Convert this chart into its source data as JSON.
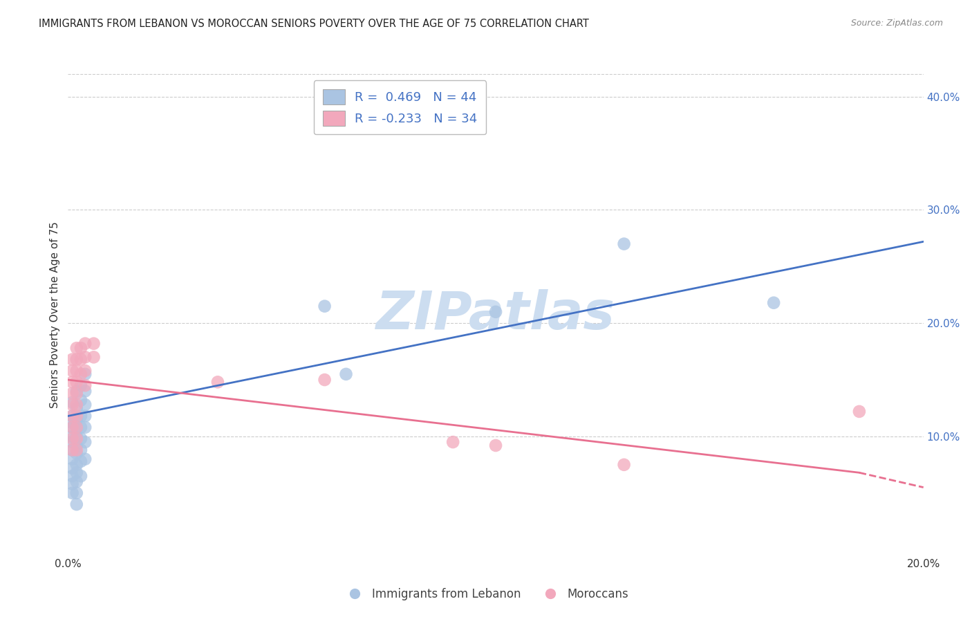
{
  "title": "IMMIGRANTS FROM LEBANON VS MOROCCAN SENIORS POVERTY OVER THE AGE OF 75 CORRELATION CHART",
  "source": "Source: ZipAtlas.com",
  "ylabel": "Seniors Poverty Over the Age of 75",
  "xlim": [
    0.0,
    0.2
  ],
  "ylim": [
    -0.005,
    0.42
  ],
  "yticks": [
    0.1,
    0.2,
    0.3,
    0.4
  ],
  "ytick_labels": [
    "10.0%",
    "20.0%",
    "30.0%",
    "40.0%"
  ],
  "xticks": [
    0.0,
    0.04,
    0.08,
    0.12,
    0.16,
    0.2
  ],
  "xtick_labels": [
    "0.0%",
    "",
    "",
    "",
    "",
    "20.0%"
  ],
  "blue_color": "#aac4e2",
  "pink_color": "#f2a8bc",
  "blue_line_color": "#4472c4",
  "pink_line_color": "#e87090",
  "blue_scatter": [
    [
      0.001,
      0.13
    ],
    [
      0.001,
      0.118
    ],
    [
      0.001,
      0.112
    ],
    [
      0.001,
      0.108
    ],
    [
      0.001,
      0.1
    ],
    [
      0.001,
      0.095
    ],
    [
      0.001,
      0.088
    ],
    [
      0.001,
      0.08
    ],
    [
      0.001,
      0.072
    ],
    [
      0.001,
      0.065
    ],
    [
      0.001,
      0.058
    ],
    [
      0.001,
      0.05
    ],
    [
      0.002,
      0.14
    ],
    [
      0.002,
      0.125
    ],
    [
      0.002,
      0.115
    ],
    [
      0.002,
      0.108
    ],
    [
      0.002,
      0.1
    ],
    [
      0.002,
      0.092
    ],
    [
      0.002,
      0.085
    ],
    [
      0.002,
      0.075
    ],
    [
      0.002,
      0.068
    ],
    [
      0.002,
      0.06
    ],
    [
      0.002,
      0.05
    ],
    [
      0.002,
      0.04
    ],
    [
      0.003,
      0.145
    ],
    [
      0.003,
      0.132
    ],
    [
      0.003,
      0.118
    ],
    [
      0.003,
      0.108
    ],
    [
      0.003,
      0.098
    ],
    [
      0.003,
      0.088
    ],
    [
      0.003,
      0.078
    ],
    [
      0.003,
      0.065
    ],
    [
      0.004,
      0.155
    ],
    [
      0.004,
      0.14
    ],
    [
      0.004,
      0.128
    ],
    [
      0.004,
      0.118
    ],
    [
      0.004,
      0.108
    ],
    [
      0.004,
      0.095
    ],
    [
      0.004,
      0.08
    ],
    [
      0.06,
      0.215
    ],
    [
      0.1,
      0.21
    ],
    [
      0.13,
      0.27
    ],
    [
      0.165,
      0.218
    ],
    [
      0.065,
      0.155
    ]
  ],
  "pink_scatter": [
    [
      0.001,
      0.168
    ],
    [
      0.001,
      0.158
    ],
    [
      0.001,
      0.148
    ],
    [
      0.001,
      0.138
    ],
    [
      0.001,
      0.128
    ],
    [
      0.001,
      0.118
    ],
    [
      0.001,
      0.108
    ],
    [
      0.001,
      0.098
    ],
    [
      0.001,
      0.088
    ],
    [
      0.002,
      0.178
    ],
    [
      0.002,
      0.168
    ],
    [
      0.002,
      0.158
    ],
    [
      0.002,
      0.148
    ],
    [
      0.002,
      0.138
    ],
    [
      0.002,
      0.128
    ],
    [
      0.002,
      0.118
    ],
    [
      0.002,
      0.108
    ],
    [
      0.002,
      0.098
    ],
    [
      0.002,
      0.088
    ],
    [
      0.003,
      0.178
    ],
    [
      0.003,
      0.168
    ],
    [
      0.003,
      0.155
    ],
    [
      0.004,
      0.182
    ],
    [
      0.004,
      0.17
    ],
    [
      0.004,
      0.158
    ],
    [
      0.004,
      0.145
    ],
    [
      0.006,
      0.182
    ],
    [
      0.006,
      0.17
    ],
    [
      0.035,
      0.148
    ],
    [
      0.06,
      0.15
    ],
    [
      0.09,
      0.095
    ],
    [
      0.1,
      0.092
    ],
    [
      0.13,
      0.075
    ],
    [
      0.185,
      0.122
    ]
  ],
  "blue_trendline_solid": [
    [
      0.0,
      0.118
    ],
    [
      0.2,
      0.272
    ]
  ],
  "pink_trendline_solid": [
    [
      0.0,
      0.15
    ],
    [
      0.185,
      0.068
    ]
  ],
  "pink_trendline_dashed": [
    [
      0.185,
      0.068
    ],
    [
      0.2,
      0.055
    ]
  ],
  "watermark": "ZIPatlas",
  "watermark_color": "#ccddf0",
  "background_color": "#ffffff",
  "grid_color": "#cccccc",
  "grid_style": "--"
}
